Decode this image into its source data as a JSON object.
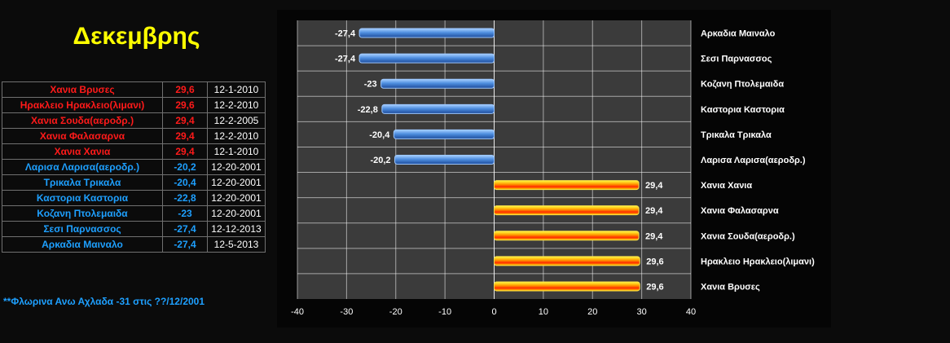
{
  "title": "Δεκεμβρης",
  "table": {
    "rows": [
      {
        "name": "Χανια Βρυσες",
        "value": "29,6",
        "date": "12-1-2010",
        "kind": "hot"
      },
      {
        "name": "Ηρακλειο Ηρακλειο(λιμανι)",
        "value": "29,6",
        "date": "12-2-2010",
        "kind": "hot"
      },
      {
        "name": "Χανια Σουδα(αεροδρ.)",
        "value": "29,4",
        "date": "12-2-2005",
        "kind": "hot"
      },
      {
        "name": "Χανια Φαλασαρνα",
        "value": "29,4",
        "date": "12-2-2010",
        "kind": "hot"
      },
      {
        "name": "Χανια Χανια",
        "value": "29,4",
        "date": "12-1-2010",
        "kind": "hot"
      },
      {
        "name": "Λαρισα Λαρισα(αεροδρ.)",
        "value": "-20,2",
        "date": "12-20-2001",
        "kind": "cold"
      },
      {
        "name": "Τρικαλα Τρικαλα",
        "value": "-20,4",
        "date": "12-20-2001",
        "kind": "cold"
      },
      {
        "name": "Καστορια Καστορια",
        "value": "-22,8",
        "date": "12-20-2001",
        "kind": "cold"
      },
      {
        "name": "Κοζανη Πτολεμαιδα",
        "value": "-23",
        "date": "12-20-2001",
        "kind": "cold"
      },
      {
        "name": "Σεσι Παρνασσος",
        "value": "-27,4",
        "date": "12-12-2013",
        "kind": "cold"
      },
      {
        "name": "Αρκαδια Μαιναλο",
        "value": "-27,4",
        "date": "12-5-2013",
        "kind": "cold"
      }
    ]
  },
  "note": "**Φλωρινα  Ανω Αχλαδα -31 στις ??/12/2001",
  "colors": {
    "hot": "#ff1a1a",
    "cold": "#1ea0ff",
    "title": "#ffff00"
  },
  "chart_data": {
    "type": "bar",
    "orientation": "horizontal",
    "categories": [
      "Αρκαδια Μαιναλο",
      "Σεσι Παρνασσος",
      "Κοζανη Πτολεμαιδα",
      "Καστορια Καστορια",
      "Τρικαλα Τρικαλα",
      "Λαρισα Λαρισα(αεροδρ.)",
      "Χανια Χανια",
      "Χανια Φαλασαρνα",
      "Χανια Σουδα(αεροδρ.)",
      "Ηρακλειο Ηρακλειο(λιμανι)",
      "Χανια Βρυσες"
    ],
    "values": [
      -27.4,
      -27.4,
      -23,
      -22.8,
      -20.4,
      -20.2,
      29.4,
      29.4,
      29.4,
      29.6,
      29.6
    ],
    "value_labels": [
      "-27,4",
      "-27,4",
      "-23",
      "-22,8",
      "-20,4",
      "-20,2",
      "29,4",
      "29,4",
      "29,4",
      "29,6",
      "29,6"
    ],
    "xlim": [
      -40,
      40
    ],
    "xticks": [
      -40,
      -30,
      -20,
      -10,
      0,
      10,
      20,
      30,
      40
    ],
    "grid": true,
    "colors": {
      "negative": "#3a7fd0",
      "positive": "#ff8a00"
    }
  }
}
